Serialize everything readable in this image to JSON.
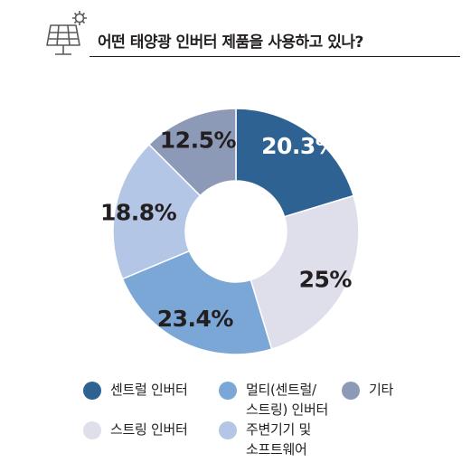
{
  "title": "어떤 태양광 인버터 제품을 사용하고 있나?",
  "icon": "solar-panel-with-gear-icon",
  "chart_data": {
    "type": "pie",
    "donut": true,
    "categories": [
      "센트럴 인버터",
      "스트링 인버터",
      "멀티(센트럴/ 스트링) 인버터",
      "주변기기 및 소프트웨어",
      "기타"
    ],
    "values": [
      20.3,
      25,
      23.4,
      18.8,
      12.5
    ],
    "labels": [
      "20.3%",
      "25%",
      "23.4%",
      "18.8%",
      "12.5%"
    ],
    "colors": [
      "#2e6293",
      "#dedfea",
      "#7aa7d6",
      "#b3c6e6",
      "#8c9ab8"
    ],
    "label_colors": [
      "#ffffff",
      "#231f20",
      "#231f20",
      "#231f20",
      "#231f20"
    ],
    "legend": [
      {
        "label": "센트럴 인버터",
        "color": "#2e6293"
      },
      {
        "label": "멀티(센트럴/\n스트링) 인버터",
        "color": "#7aa7d6"
      },
      {
        "label": "기타",
        "color": "#8c9ab8"
      },
      {
        "label": "스트링 인버터",
        "color": "#dedfea"
      },
      {
        "label": "주변기기 및\n소프트웨어",
        "color": "#b3c6e6"
      }
    ],
    "legend_position": "bottom"
  }
}
